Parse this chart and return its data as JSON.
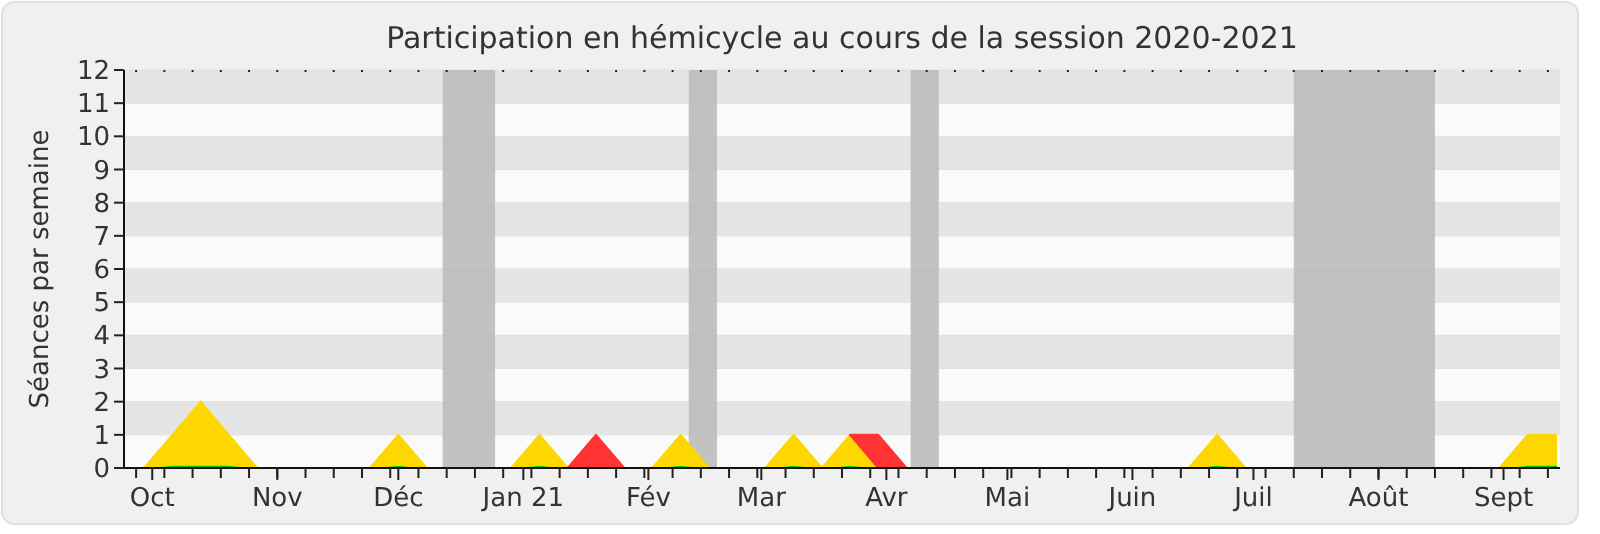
{
  "chart_data": {
    "type": "area",
    "title": "Participation en hémicycle au cours de la session 2020-2021",
    "ylabel": "Séances par semaine",
    "xlim": [
      "2020-09-24",
      "2021-09-15"
    ],
    "xticks": [
      {
        "value": "2020-10-01",
        "label": "Oct"
      },
      {
        "value": "2020-11-01",
        "label": "Nov"
      },
      {
        "value": "2020-12-01",
        "label": "Déc"
      },
      {
        "value": "2021-01-01",
        "label": "Jan 21"
      },
      {
        "value": "2021-02-01",
        "label": "Fév"
      },
      {
        "value": "2021-03-01",
        "label": "Mar"
      },
      {
        "value": "2021-04-01",
        "label": "Avr"
      },
      {
        "value": "2021-05-01",
        "label": "Mai"
      },
      {
        "value": "2021-06-01",
        "label": "Juin"
      },
      {
        "value": "2021-07-01",
        "label": "Juil"
      },
      {
        "value": "2021-08-01",
        "label": "Août"
      },
      {
        "value": "2021-09-01",
        "label": "Sept"
      }
    ],
    "ylim": [
      0,
      12
    ],
    "yticks": [
      0,
      1,
      2,
      3,
      4,
      5,
      6,
      7,
      8,
      9,
      10,
      11,
      12
    ],
    "grid": "y",
    "stacked": true,
    "bands": [
      {
        "axis": "x",
        "from": "2020-12-12",
        "to": "2020-12-25",
        "color": "#bbbbbb"
      },
      {
        "axis": "x",
        "from": "2021-02-11",
        "to": "2021-02-18",
        "color": "#bbbbbb"
      },
      {
        "axis": "x",
        "from": "2021-04-07",
        "to": "2021-04-14",
        "color": "#bbbbbb"
      },
      {
        "axis": "x",
        "from": "2021-07-11",
        "to": "2021-08-15",
        "color": "#bbbbbb"
      }
    ],
    "x": [
      "2020-09-29",
      "2020-10-06",
      "2020-10-13",
      "2020-10-20",
      "2020-10-27",
      "2020-11-03",
      "2020-11-10",
      "2020-11-17",
      "2020-11-24",
      "2020-12-01",
      "2020-12-08",
      "2020-12-15",
      "2020-12-22",
      "2020-12-29",
      "2021-01-05",
      "2021-01-12",
      "2021-01-19",
      "2021-01-26",
      "2021-02-02",
      "2021-02-09",
      "2021-02-16",
      "2021-02-23",
      "2021-03-02",
      "2021-03-09",
      "2021-03-16",
      "2021-03-23",
      "2021-03-30",
      "2021-04-06",
      "2021-04-13",
      "2021-04-20",
      "2021-04-27",
      "2021-05-04",
      "2021-05-11",
      "2021-05-18",
      "2021-05-25",
      "2021-06-01",
      "2021-06-08",
      "2021-06-15",
      "2021-06-22",
      "2021-06-29",
      "2021-07-06",
      "2021-07-13",
      "2021-07-20",
      "2021-07-27",
      "2021-08-03",
      "2021-08-10",
      "2021-08-17",
      "2021-08-24",
      "2021-08-31",
      "2021-09-07",
      "2021-09-14"
    ],
    "series": [
      {
        "color": "#00cc00",
        "values": [
          0,
          0.1,
          0.1,
          0.1,
          0,
          0,
          0,
          0,
          0,
          0.1,
          0,
          0,
          0,
          0,
          0.1,
          0,
          0,
          0,
          0,
          0.1,
          0,
          0,
          0,
          0.1,
          0,
          0.1,
          0,
          0,
          0,
          0,
          0,
          0,
          0,
          0,
          0,
          0,
          0,
          0,
          0.1,
          0,
          0,
          0,
          0,
          0,
          0,
          0,
          0,
          0,
          0,
          0.1,
          0.1
        ]
      },
      {
        "color": "#ffd700",
        "values": [
          0,
          0.9,
          1.9,
          0.9,
          0,
          0,
          0,
          0,
          0,
          0.9,
          0,
          0,
          0,
          0,
          0.9,
          0,
          0,
          0,
          0,
          0.9,
          0,
          0,
          0,
          0.9,
          0,
          0.9,
          0,
          0,
          0,
          0,
          0,
          0,
          0,
          0,
          0,
          0,
          0,
          0,
          0.9,
          0,
          0,
          0,
          0,
          0,
          0,
          0,
          0,
          0,
          0,
          0.9,
          0.9
        ]
      },
      {
        "color": "#ff3333",
        "values": [
          null,
          null,
          null,
          null,
          null,
          null,
          null,
          null,
          null,
          null,
          null,
          null,
          null,
          null,
          null,
          0,
          1,
          0,
          null,
          null,
          null,
          null,
          null,
          null,
          null,
          0,
          1,
          0,
          null,
          null,
          null,
          null,
          null,
          null,
          null,
          null,
          null,
          null,
          null,
          null,
          null,
          null,
          null,
          null,
          null,
          null,
          null,
          null,
          null,
          null,
          null
        ]
      }
    ]
  }
}
